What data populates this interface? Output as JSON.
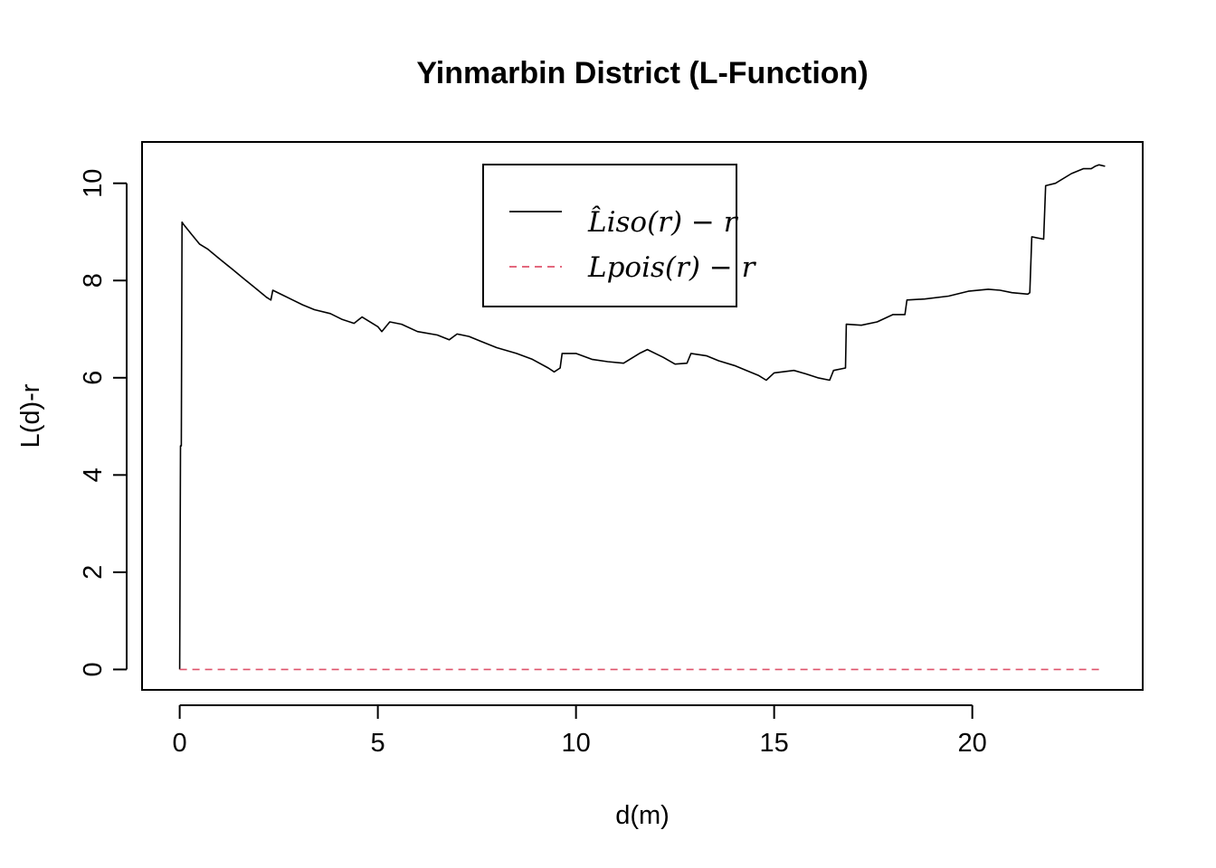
{
  "chart_data": {
    "type": "line",
    "title": "Yinmarbin District (L-Function)",
    "xlabel": "d(m)",
    "ylabel": "L(d)-r",
    "xlim": [
      -0.95,
      24.3
    ],
    "ylim": [
      -0.42,
      10.85
    ],
    "x_ticks": [
      0,
      5,
      10,
      15,
      20
    ],
    "y_ticks": [
      0,
      2,
      4,
      6,
      8,
      10
    ],
    "grid": false,
    "legend_position": "top-center",
    "legend": [
      {
        "label": "L̂iso(r) − r",
        "color": "#000000",
        "style": "solid"
      },
      {
        "label": "Lpois(r) − r",
        "color": "#DF536B",
        "style": "dashed"
      }
    ],
    "series": [
      {
        "name": "L̂iso(r) − r",
        "color": "#000000",
        "style": "solid",
        "points": [
          [
            0.0,
            0.0
          ],
          [
            0.02,
            4.6
          ],
          [
            0.04,
            4.6
          ],
          [
            0.06,
            9.2
          ],
          [
            0.1,
            9.15
          ],
          [
            0.3,
            8.95
          ],
          [
            0.5,
            8.75
          ],
          [
            0.7,
            8.65
          ],
          [
            1.0,
            8.45
          ],
          [
            1.3,
            8.25
          ],
          [
            1.6,
            8.05
          ],
          [
            1.9,
            7.85
          ],
          [
            2.2,
            7.65
          ],
          [
            2.3,
            7.6
          ],
          [
            2.35,
            7.8
          ],
          [
            2.6,
            7.7
          ],
          [
            2.8,
            7.62
          ],
          [
            3.1,
            7.5
          ],
          [
            3.4,
            7.4
          ],
          [
            3.8,
            7.32
          ],
          [
            4.1,
            7.2
          ],
          [
            4.4,
            7.12
          ],
          [
            4.6,
            7.25
          ],
          [
            5.0,
            7.05
          ],
          [
            5.1,
            6.95
          ],
          [
            5.3,
            7.15
          ],
          [
            5.6,
            7.1
          ],
          [
            6.0,
            6.95
          ],
          [
            6.5,
            6.88
          ],
          [
            6.8,
            6.78
          ],
          [
            7.0,
            6.9
          ],
          [
            7.3,
            6.85
          ],
          [
            7.6,
            6.75
          ],
          [
            8.0,
            6.62
          ],
          [
            8.5,
            6.5
          ],
          [
            8.9,
            6.38
          ],
          [
            9.3,
            6.2
          ],
          [
            9.45,
            6.12
          ],
          [
            9.6,
            6.2
          ],
          [
            9.65,
            6.5
          ],
          [
            10.0,
            6.5
          ],
          [
            10.4,
            6.38
          ],
          [
            10.8,
            6.33
          ],
          [
            11.2,
            6.3
          ],
          [
            11.6,
            6.5
          ],
          [
            11.8,
            6.58
          ],
          [
            12.2,
            6.42
          ],
          [
            12.5,
            6.28
          ],
          [
            12.8,
            6.3
          ],
          [
            12.9,
            6.5
          ],
          [
            13.3,
            6.45
          ],
          [
            13.6,
            6.35
          ],
          [
            14.0,
            6.25
          ],
          [
            14.3,
            6.15
          ],
          [
            14.6,
            6.05
          ],
          [
            14.8,
            5.95
          ],
          [
            15.0,
            6.1
          ],
          [
            15.5,
            6.15
          ],
          [
            15.8,
            6.08
          ],
          [
            16.1,
            6.0
          ],
          [
            16.4,
            5.95
          ],
          [
            16.5,
            6.15
          ],
          [
            16.8,
            6.2
          ],
          [
            16.82,
            7.1
          ],
          [
            17.2,
            7.08
          ],
          [
            17.6,
            7.15
          ],
          [
            18.0,
            7.3
          ],
          [
            18.3,
            7.3
          ],
          [
            18.35,
            7.6
          ],
          [
            18.8,
            7.62
          ],
          [
            19.4,
            7.68
          ],
          [
            19.9,
            7.78
          ],
          [
            20.4,
            7.82
          ],
          [
            20.7,
            7.8
          ],
          [
            21.0,
            7.75
          ],
          [
            21.4,
            7.72
          ],
          [
            21.45,
            7.75
          ],
          [
            21.5,
            8.9
          ],
          [
            21.8,
            8.85
          ],
          [
            21.85,
            9.95
          ],
          [
            22.1,
            10.0
          ],
          [
            22.5,
            10.2
          ],
          [
            22.8,
            10.3
          ],
          [
            23.0,
            10.3
          ],
          [
            23.1,
            10.35
          ],
          [
            23.2,
            10.38
          ],
          [
            23.35,
            10.35
          ]
        ]
      },
      {
        "name": "Lpois(r) − r",
        "color": "#DF536B",
        "style": "dashed",
        "points": [
          [
            0.0,
            0.0
          ],
          [
            23.25,
            0.0
          ]
        ]
      }
    ]
  }
}
